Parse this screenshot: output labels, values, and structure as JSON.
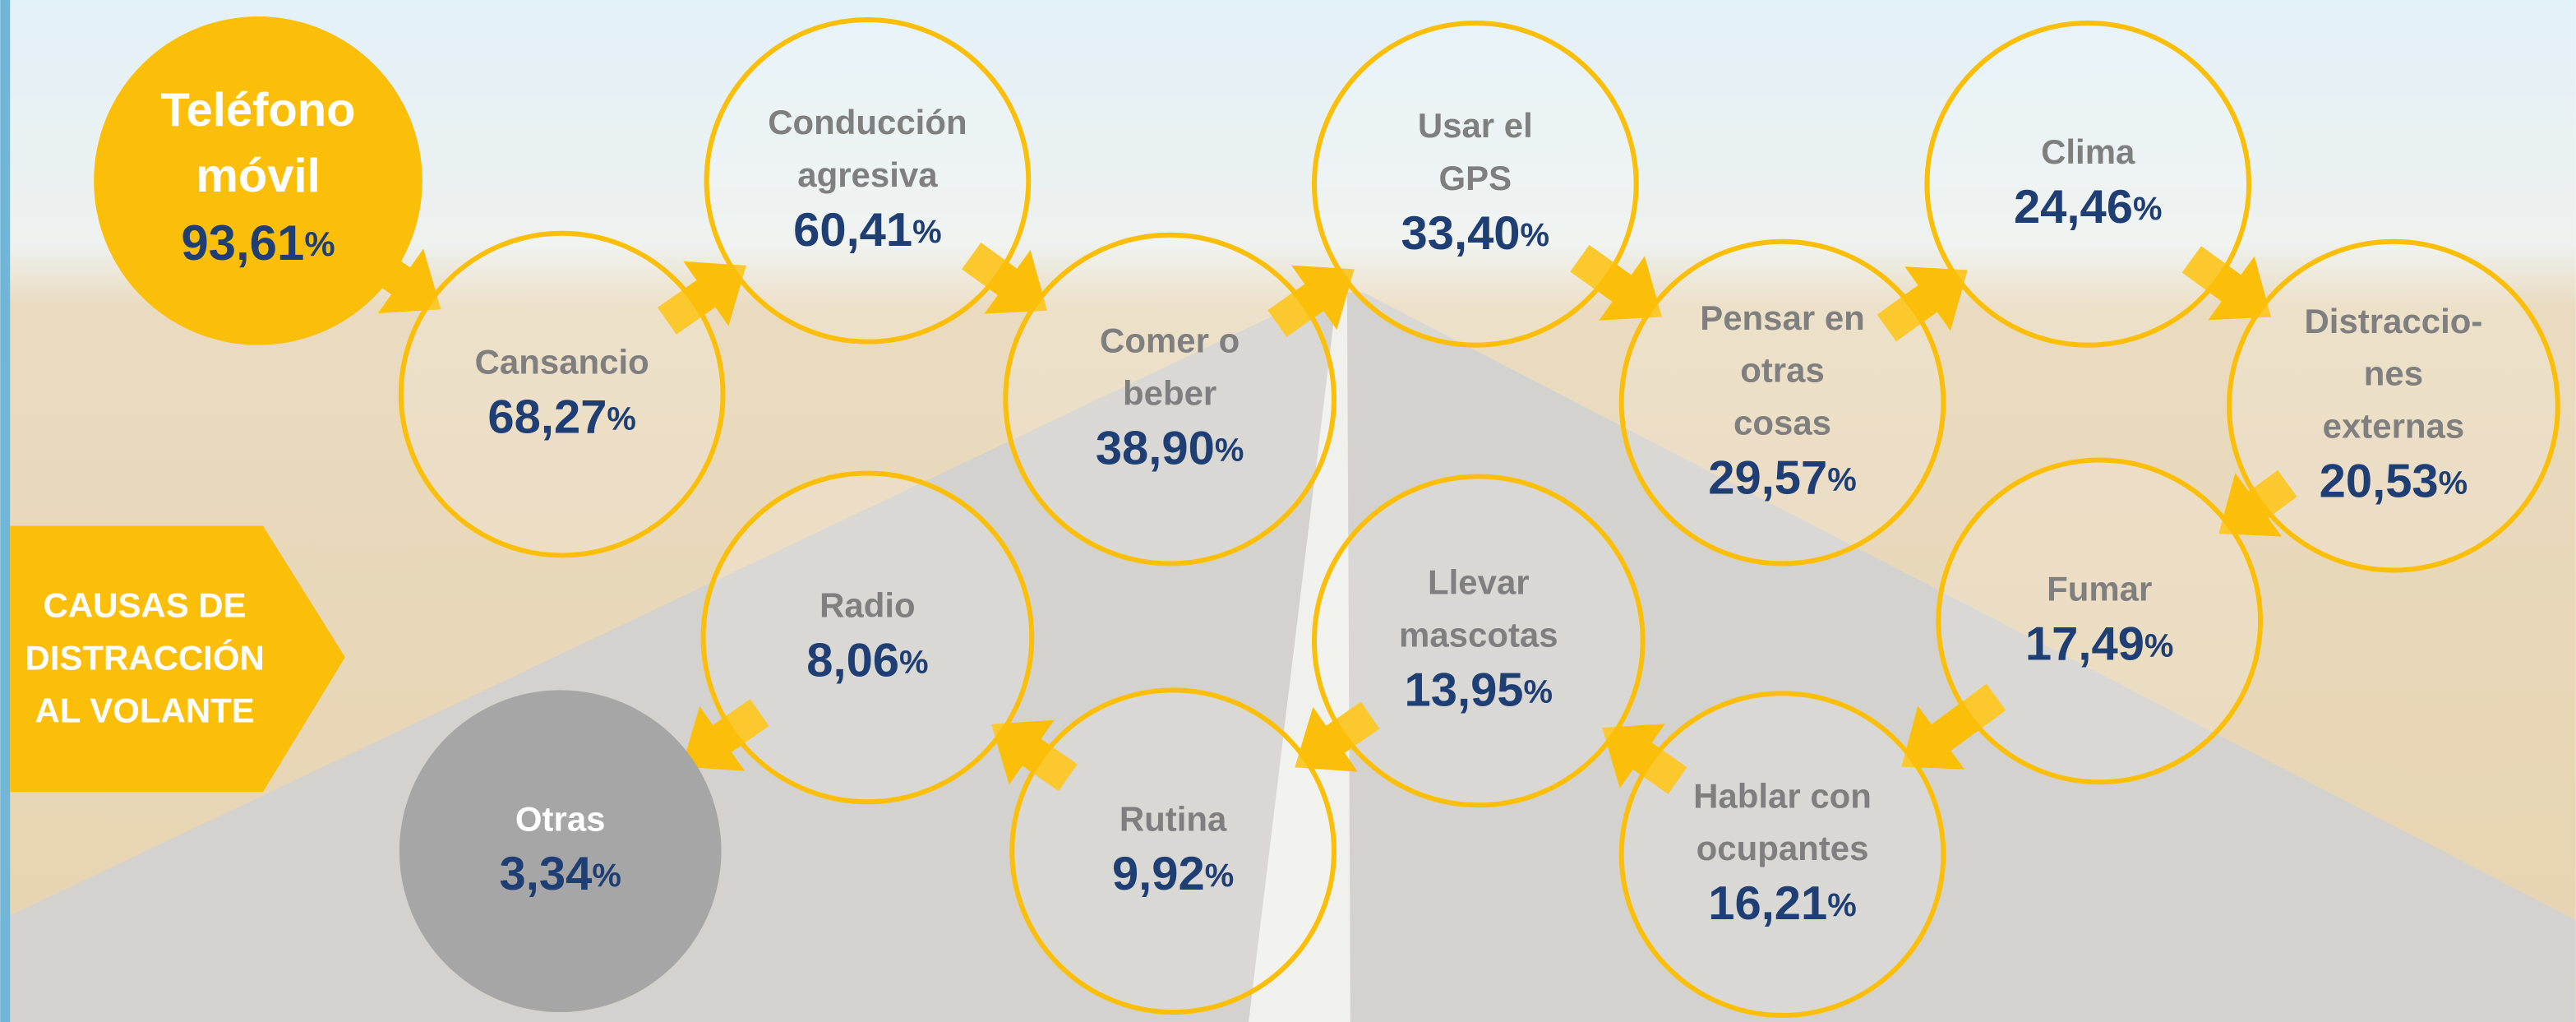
{
  "title": {
    "lines": [
      "CAUSAS DE",
      "DISTRACCIÓN",
      "AL VOLANTE"
    ]
  },
  "nodes": [
    {
      "label_lines": [
        "Teléfono",
        "móvil"
      ],
      "value": "93,61",
      "unit": "%"
    },
    {
      "label_lines": [
        "Cansancio"
      ],
      "value": "68,27",
      "unit": "%"
    },
    {
      "label_lines": [
        "Conducción",
        "agresiva"
      ],
      "value": "60,41",
      "unit": "%"
    },
    {
      "label_lines": [
        "Comer o",
        "beber"
      ],
      "value": "38,90",
      "unit": "%"
    },
    {
      "label_lines": [
        "Usar el",
        "GPS"
      ],
      "value": "33,40",
      "unit": "%"
    },
    {
      "label_lines": [
        "Pensar en",
        "otras",
        "cosas"
      ],
      "value": "29,57",
      "unit": "%"
    },
    {
      "label_lines": [
        "Clima"
      ],
      "value": "24,46",
      "unit": "%"
    },
    {
      "label_lines": [
        "Distraccio-",
        "nes",
        "externas"
      ],
      "value": "20,53",
      "unit": "%"
    },
    {
      "label_lines": [
        "Fumar"
      ],
      "value": "17,49",
      "unit": "%"
    },
    {
      "label_lines": [
        "Hablar con",
        "ocupantes"
      ],
      "value": "16,21",
      "unit": "%"
    },
    {
      "label_lines": [
        "Llevar",
        "mascotas"
      ],
      "value": "13,95",
      "unit": "%"
    },
    {
      "label_lines": [
        "Rutina"
      ],
      "value": "9,92",
      "unit": "%"
    },
    {
      "label_lines": [
        "Radio"
      ],
      "value": "8,06",
      "unit": "%"
    },
    {
      "label_lines": [
        "Otras"
      ],
      "value": "3,34",
      "unit": "%"
    }
  ]
}
